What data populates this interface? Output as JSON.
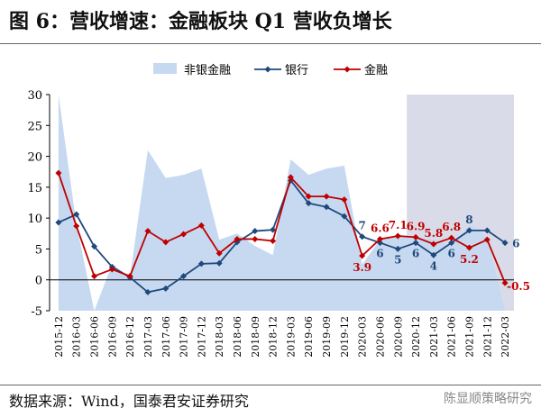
{
  "title": "图 6：营收增速：金融板块 Q1 营收负增长",
  "source": "数据来源：Wind，国泰君安证券研究",
  "watermark": "陈显顺策略研究",
  "colors": {
    "shade": "#c6d9f1",
    "highlight": "#d9dce8",
    "bank": "#1f497d",
    "finance": "#c00000"
  },
  "chart_data": {
    "type": "line",
    "x": [
      "2015-12",
      "2016-03",
      "2016-06",
      "2016-09",
      "2016-12",
      "2017-03",
      "2017-06",
      "2017-09",
      "2017-12",
      "2018-03",
      "2018-06",
      "2018-09",
      "2018-12",
      "2019-03",
      "2019-06",
      "2019-09",
      "2019-12",
      "2020-03",
      "2020-06",
      "2020-09",
      "2020-12",
      "2021-03",
      "2021-06",
      "2021-09",
      "2021-12",
      "2022-03"
    ],
    "x_tick_labels": [
      "2015-12",
      "2016-03",
      "2016-06",
      "2016-09",
      "2016-12",
      "2017-03",
      "2017-06",
      "2017-09",
      "2017-12",
      "2018-03",
      "2018-06",
      "2018-09",
      "2018-12",
      "2019-03",
      "2019-06",
      "2019-09",
      "2019-12",
      "2020-03",
      "2020-06",
      "2020-09",
      "2020-12",
      "2021-03",
      "2021-06",
      "2021-09",
      "2021-12",
      "2022-03"
    ],
    "ylim": [
      -5,
      30
    ],
    "yticks": [
      -5,
      0,
      5,
      10,
      15,
      20,
      25,
      30
    ],
    "highlight_range": [
      "2020-12",
      "2022-03"
    ],
    "legend": "top",
    "series": [
      {
        "name": "非银金融",
        "kind": "area",
        "color": "#c6d9f1",
        "values": [
          30,
          9,
          -5,
          2.5,
          0.5,
          21,
          16.5,
          17,
          18,
          6.5,
          7.5,
          5.5,
          4,
          19.5,
          17,
          18,
          18.5,
          2.5,
          6.5,
          7,
          7,
          6.5,
          5.5,
          9,
          7,
          -5
        ]
      },
      {
        "name": "银行",
        "kind": "line",
        "marker": "diamond",
        "color": "#1f497d",
        "values": [
          9.3,
          10.6,
          5.4,
          2.1,
          0.4,
          -2,
          -1.4,
          0.6,
          2.6,
          2.7,
          6.1,
          7.9,
          8.1,
          16.1,
          12.4,
          11.8,
          10.3,
          7,
          6,
          5,
          6,
          4,
          6,
          8,
          8,
          6
        ],
        "data_labels": [
          {
            "x": "2020-03",
            "text": "7"
          },
          {
            "x": "2020-06",
            "text": "6"
          },
          {
            "x": "2020-09",
            "text": "5"
          },
          {
            "x": "2020-12",
            "text": "6"
          },
          {
            "x": "2021-03",
            "text": "4"
          },
          {
            "x": "2021-06",
            "text": "6"
          },
          {
            "x": "2021-09",
            "text": "8"
          },
          {
            "x": "2022-03",
            "text": "6"
          }
        ]
      },
      {
        "name": "金融",
        "kind": "line",
        "marker": "diamond",
        "color": "#c00000",
        "values": [
          17.3,
          8.7,
          0.6,
          1.7,
          0.6,
          7.9,
          6.1,
          7.4,
          8.8,
          4.3,
          6.6,
          6.6,
          6.3,
          16.6,
          13.5,
          13.5,
          13,
          3.9,
          6.6,
          7.1,
          6.9,
          5.8,
          6.8,
          5.2,
          6.5,
          -0.5
        ],
        "data_labels": [
          {
            "x": "2020-03",
            "text": "3.9"
          },
          {
            "x": "2020-06",
            "text": "6.6"
          },
          {
            "x": "2020-09",
            "text": "7.1"
          },
          {
            "x": "2020-12",
            "text": "6.9"
          },
          {
            "x": "2021-03",
            "text": "5.8"
          },
          {
            "x": "2021-06",
            "text": "6.8"
          },
          {
            "x": "2021-09",
            "text": "5.2"
          },
          {
            "x": "2022-03",
            "text": "-0.5"
          }
        ]
      }
    ]
  }
}
